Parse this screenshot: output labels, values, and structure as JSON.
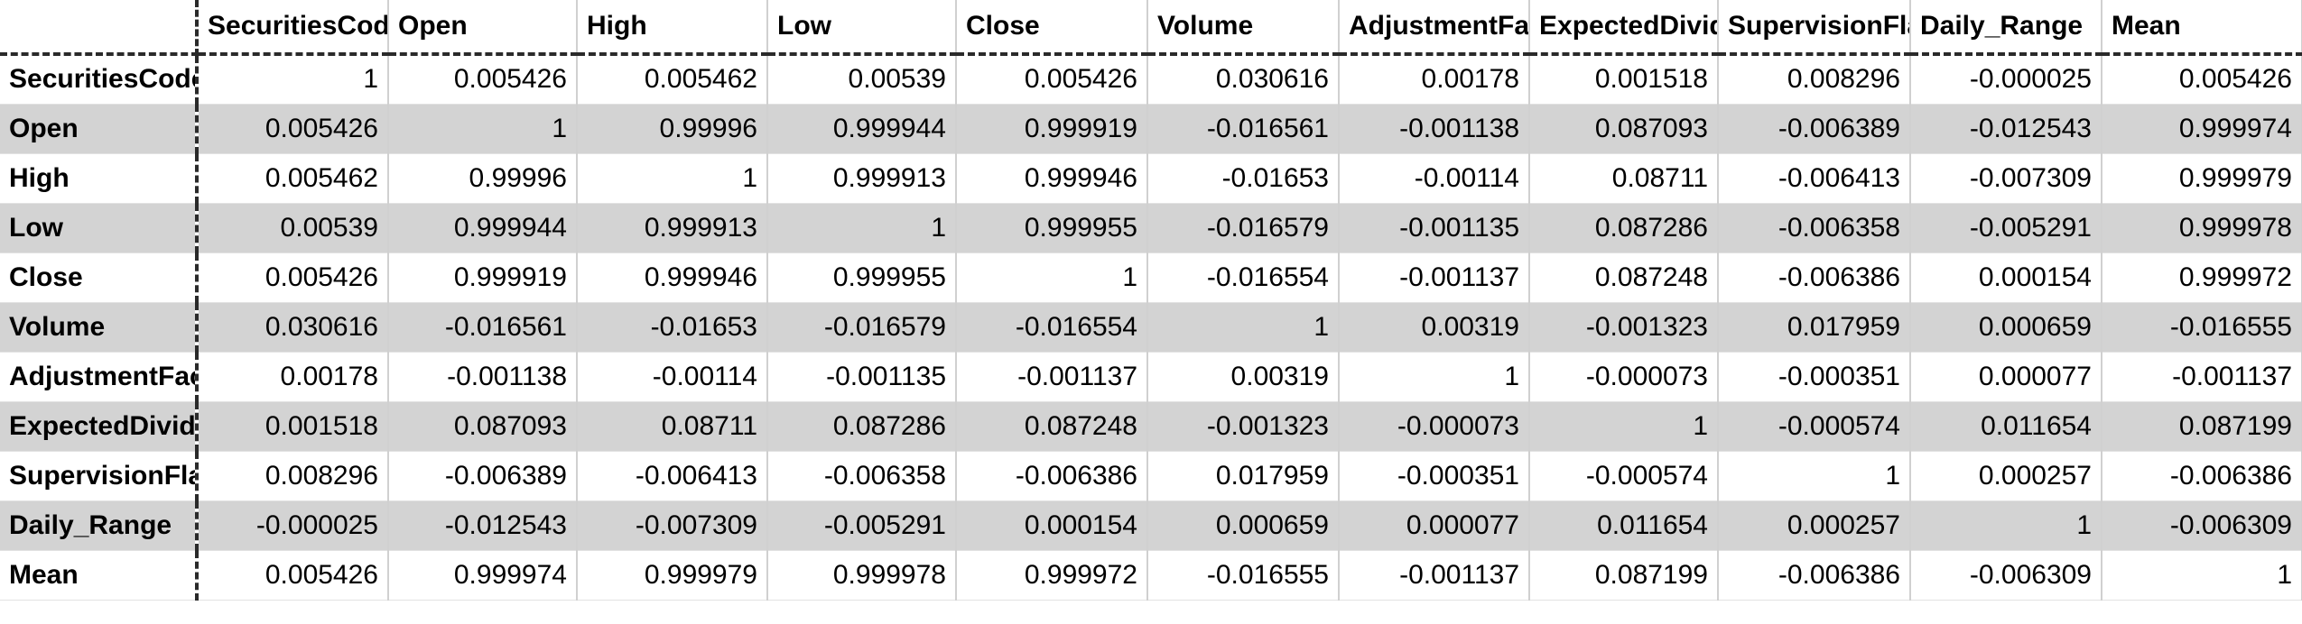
{
  "table": {
    "columns": [
      "SecuritiesCode",
      "Open",
      "High",
      "Low",
      "Close",
      "Volume",
      "AdjustmentFactor",
      "ExpectedDividend",
      "SupervisionFlag",
      "Daily_Range",
      "Mean"
    ],
    "rows": [
      {
        "label": "SecuritiesCode",
        "values": [
          "1",
          "0.005426",
          "0.005462",
          "0.00539",
          "0.005426",
          "0.030616",
          "0.00178",
          "0.001518",
          "0.008296",
          "-0.000025",
          "0.005426"
        ]
      },
      {
        "label": "Open",
        "values": [
          "0.005426",
          "1",
          "0.99996",
          "0.999944",
          "0.999919",
          "-0.016561",
          "-0.001138",
          "0.087093",
          "-0.006389",
          "-0.012543",
          "0.999974"
        ]
      },
      {
        "label": "High",
        "values": [
          "0.005462",
          "0.99996",
          "1",
          "0.999913",
          "0.999946",
          "-0.01653",
          "-0.00114",
          "0.08711",
          "-0.006413",
          "-0.007309",
          "0.999979"
        ]
      },
      {
        "label": "Low",
        "values": [
          "0.00539",
          "0.999944",
          "0.999913",
          "1",
          "0.999955",
          "-0.016579",
          "-0.001135",
          "0.087286",
          "-0.006358",
          "-0.005291",
          "0.999978"
        ]
      },
      {
        "label": "Close",
        "values": [
          "0.005426",
          "0.999919",
          "0.999946",
          "0.999955",
          "1",
          "-0.016554",
          "-0.001137",
          "0.087248",
          "-0.006386",
          "0.000154",
          "0.999972"
        ]
      },
      {
        "label": "Volume",
        "values": [
          "0.030616",
          "-0.016561",
          "-0.01653",
          "-0.016579",
          "-0.016554",
          "1",
          "0.00319",
          "-0.001323",
          "0.017959",
          "0.000659",
          "-0.016555"
        ]
      },
      {
        "label": "AdjustmentFactor",
        "values": [
          "0.00178",
          "-0.001138",
          "-0.00114",
          "-0.001135",
          "-0.001137",
          "0.00319",
          "1",
          "-0.000073",
          "-0.000351",
          "0.000077",
          "-0.001137"
        ]
      },
      {
        "label": "ExpectedDividend",
        "values": [
          "0.001518",
          "0.087093",
          "0.08711",
          "0.087286",
          "0.087248",
          "-0.001323",
          "-0.000073",
          "1",
          "-0.000574",
          "0.011654",
          "0.087199"
        ]
      },
      {
        "label": "SupervisionFlag",
        "values": [
          "0.008296",
          "-0.006389",
          "-0.006413",
          "-0.006358",
          "-0.006386",
          "0.017959",
          "-0.000351",
          "-0.000574",
          "1",
          "0.000257",
          "-0.006386"
        ]
      },
      {
        "label": "Daily_Range",
        "values": [
          "-0.000025",
          "-0.012543",
          "-0.007309",
          "-0.005291",
          "0.000154",
          "0.000659",
          "0.000077",
          "0.011654",
          "0.000257",
          "1",
          "-0.006309"
        ]
      },
      {
        "label": "Mean",
        "values": [
          "0.005426",
          "0.999974",
          "0.999979",
          "0.999978",
          "0.999972",
          "-0.016555",
          "-0.001137",
          "0.087199",
          "-0.006386",
          "-0.006309",
          "1"
        ]
      }
    ]
  },
  "colors": {
    "stripe": "#d3d3d3",
    "background": "#ffffff",
    "grid": "#d0d0d0",
    "header_border": "#2a2a2a"
  }
}
